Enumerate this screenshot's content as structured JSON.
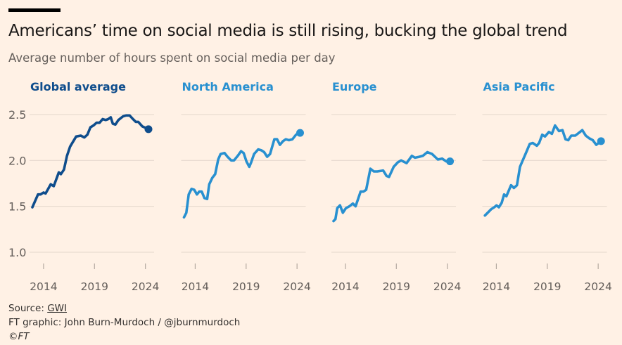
{
  "header": {
    "title": "Americans’ time on social media is still rising, bucking the global trend",
    "subtitle": "Average number of hours spent on social media per day"
  },
  "footer": {
    "source_label": "Source: ",
    "source_link": "GWI",
    "credit": "FT graphic: John Burn-Murdoch / @jburnmurdoch",
    "copyright": "©FT"
  },
  "colors": {
    "background": "#fff1e5",
    "global": "#0f4d8c",
    "regional": "#2890d0",
    "grid": "#e3d6cb"
  },
  "chart_data": {
    "type": "line",
    "title": "Americans’ time on social media is still rising, bucking the global trend",
    "ylabel": "Average number of hours spent on social media per day",
    "xlabel": "",
    "ylim": [
      1.0,
      2.5
    ],
    "yticks": [
      "1.0",
      "1.5",
      "2.0",
      "2.5"
    ],
    "yticks_values": [
      1.0,
      1.5,
      2.0,
      2.5
    ],
    "xticks": [
      "2014",
      "2019",
      "2024"
    ],
    "xticks_values": [
      2014,
      2019,
      2024
    ],
    "xlim": [
      2012.9,
      2024.3
    ],
    "grid": true,
    "series": [
      {
        "name": "Global average",
        "color": "#0f4d8c",
        "points": [
          [
            2012.9,
            1.49
          ],
          [
            2013.45,
            1.63
          ],
          [
            2013.7,
            1.63
          ],
          [
            2014.0,
            1.65
          ],
          [
            2014.2,
            1.64
          ],
          [
            2014.7,
            1.74
          ],
          [
            2015.0,
            1.72
          ],
          [
            2015.5,
            1.87
          ],
          [
            2015.7,
            1.85
          ],
          [
            2016.0,
            1.9
          ],
          [
            2016.3,
            2.05
          ],
          [
            2016.6,
            2.15
          ],
          [
            2017.2,
            2.26
          ],
          [
            2017.65,
            2.27
          ],
          [
            2018.0,
            2.25
          ],
          [
            2018.3,
            2.28
          ],
          [
            2018.6,
            2.36
          ],
          [
            2018.9,
            2.38
          ],
          [
            2019.2,
            2.41
          ],
          [
            2019.5,
            2.41
          ],
          [
            2019.8,
            2.45
          ],
          [
            2020.1,
            2.44
          ],
          [
            2020.35,
            2.45
          ],
          [
            2020.6,
            2.47
          ],
          [
            2020.8,
            2.4
          ],
          [
            2021.05,
            2.39
          ],
          [
            2021.35,
            2.44
          ],
          [
            2021.8,
            2.48
          ],
          [
            2022.1,
            2.49
          ],
          [
            2022.45,
            2.49
          ],
          [
            2022.7,
            2.46
          ],
          [
            2023.05,
            2.42
          ],
          [
            2023.3,
            2.42
          ],
          [
            2023.7,
            2.37
          ],
          [
            2024.3,
            2.34
          ]
        ]
      },
      {
        "name": "North America",
        "color": "#2890d0",
        "points": [
          [
            2012.9,
            1.38
          ],
          [
            2013.13,
            1.43
          ],
          [
            2013.36,
            1.63
          ],
          [
            2013.64,
            1.69
          ],
          [
            2013.9,
            1.68
          ],
          [
            2014.17,
            1.63
          ],
          [
            2014.4,
            1.66
          ],
          [
            2014.64,
            1.66
          ],
          [
            2014.91,
            1.59
          ],
          [
            2015.17,
            1.58
          ],
          [
            2015.38,
            1.74
          ],
          [
            2015.68,
            1.81
          ],
          [
            2015.96,
            1.85
          ],
          [
            2016.26,
            2.01
          ],
          [
            2016.49,
            2.07
          ],
          [
            2016.88,
            2.08
          ],
          [
            2017.18,
            2.04
          ],
          [
            2017.53,
            2.0
          ],
          [
            2017.81,
            2.0
          ],
          [
            2018.18,
            2.05
          ],
          [
            2018.5,
            2.1
          ],
          [
            2018.76,
            2.08
          ],
          [
            2019.03,
            1.99
          ],
          [
            2019.31,
            1.93
          ],
          [
            2019.5,
            1.98
          ],
          [
            2019.78,
            2.07
          ],
          [
            2020.19,
            2.12
          ],
          [
            2020.49,
            2.11
          ],
          [
            2020.77,
            2.09
          ],
          [
            2021.07,
            2.04
          ],
          [
            2021.35,
            2.07
          ],
          [
            2021.77,
            2.23
          ],
          [
            2022.04,
            2.23
          ],
          [
            2022.32,
            2.17
          ],
          [
            2022.62,
            2.21
          ],
          [
            2022.9,
            2.23
          ],
          [
            2023.2,
            2.22
          ],
          [
            2023.55,
            2.23
          ],
          [
            2023.9,
            2.28
          ],
          [
            2024.3,
            2.3
          ]
        ]
      },
      {
        "name": "Europe",
        "color": "#2890d0",
        "points": [
          [
            2012.83,
            1.34
          ],
          [
            2013.02,
            1.36
          ],
          [
            2013.2,
            1.48
          ],
          [
            2013.47,
            1.51
          ],
          [
            2013.75,
            1.43
          ],
          [
            2014.05,
            1.48
          ],
          [
            2014.39,
            1.5
          ],
          [
            2014.73,
            1.53
          ],
          [
            2015.0,
            1.5
          ],
          [
            2015.49,
            1.66
          ],
          [
            2015.76,
            1.66
          ],
          [
            2016.04,
            1.68
          ],
          [
            2016.45,
            1.91
          ],
          [
            2016.79,
            1.88
          ],
          [
            2017.13,
            1.88
          ],
          [
            2017.71,
            1.89
          ],
          [
            2018.05,
            1.83
          ],
          [
            2018.28,
            1.82
          ],
          [
            2018.74,
            1.93
          ],
          [
            2019.15,
            1.98
          ],
          [
            2019.47,
            2.0
          ],
          [
            2020.0,
            1.97
          ],
          [
            2020.52,
            2.05
          ],
          [
            2020.84,
            2.03
          ],
          [
            2021.25,
            2.04
          ],
          [
            2021.6,
            2.05
          ],
          [
            2022.05,
            2.09
          ],
          [
            2022.51,
            2.07
          ],
          [
            2023.08,
            2.01
          ],
          [
            2023.5,
            2.02
          ],
          [
            2023.89,
            1.99
          ],
          [
            2024.27,
            1.99
          ]
        ]
      },
      {
        "name": "Asia Pacific",
        "color": "#2890d0",
        "points": [
          [
            2012.88,
            1.4
          ],
          [
            2013.15,
            1.43
          ],
          [
            2013.5,
            1.47
          ],
          [
            2013.79,
            1.49
          ],
          [
            2014.02,
            1.51
          ],
          [
            2014.25,
            1.49
          ],
          [
            2014.53,
            1.54
          ],
          [
            2014.76,
            1.63
          ],
          [
            2014.99,
            1.61
          ],
          [
            2015.44,
            1.73
          ],
          [
            2015.72,
            1.7
          ],
          [
            2016.02,
            1.73
          ],
          [
            2016.32,
            1.93
          ],
          [
            2016.59,
            2.0
          ],
          [
            2016.94,
            2.09
          ],
          [
            2017.28,
            2.18
          ],
          [
            2017.58,
            2.19
          ],
          [
            2017.97,
            2.16
          ],
          [
            2018.2,
            2.19
          ],
          [
            2018.5,
            2.28
          ],
          [
            2018.77,
            2.26
          ],
          [
            2019.16,
            2.31
          ],
          [
            2019.46,
            2.29
          ],
          [
            2019.76,
            2.38
          ],
          [
            2020.15,
            2.32
          ],
          [
            2020.49,
            2.33
          ],
          [
            2020.79,
            2.23
          ],
          [
            2021.06,
            2.22
          ],
          [
            2021.36,
            2.27
          ],
          [
            2021.75,
            2.27
          ],
          [
            2022.1,
            2.3
          ],
          [
            2022.44,
            2.33
          ],
          [
            2022.78,
            2.27
          ],
          [
            2023.13,
            2.24
          ],
          [
            2023.47,
            2.22
          ],
          [
            2023.81,
            2.17
          ],
          [
            2024.28,
            2.21
          ]
        ]
      }
    ]
  }
}
